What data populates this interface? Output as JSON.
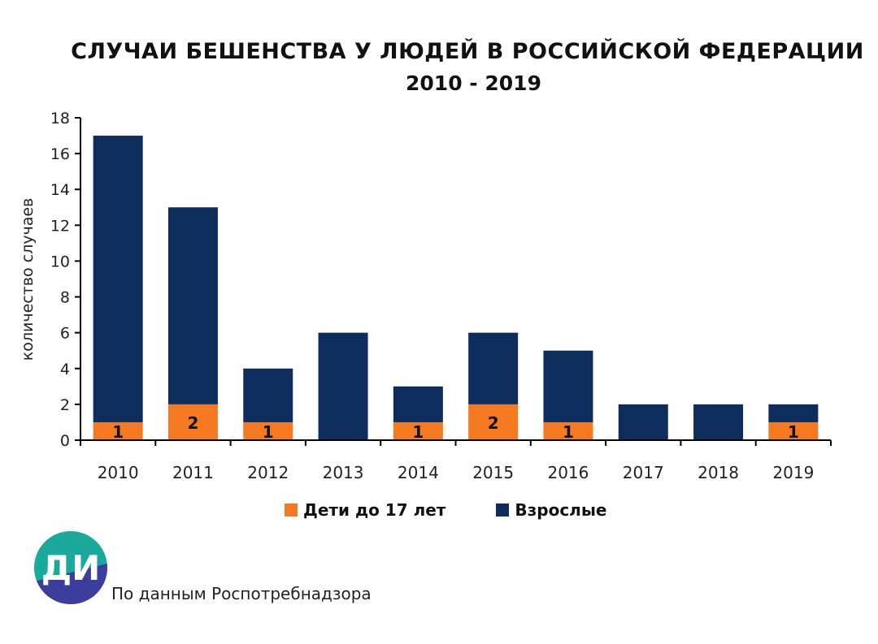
{
  "header": {
    "title": "СЛУЧАИ БЕШЕНСТВА У ЛЮДЕЙ В РОССИЙСКОЙ ФЕДЕРАЦИИ",
    "subtitle": "2010 - 2019"
  },
  "chart_data": {
    "type": "bar",
    "stacked": true,
    "categories": [
      "2010",
      "2011",
      "2012",
      "2013",
      "2014",
      "2015",
      "2016",
      "2017",
      "2018",
      "2019"
    ],
    "series": [
      {
        "name": "Дети до 17 лет",
        "values": [
          1,
          2,
          1,
          0,
          1,
          2,
          1,
          0,
          0,
          1
        ],
        "color": "#f47920"
      },
      {
        "name": "Взрослые",
        "values": [
          16,
          11,
          3,
          6,
          2,
          4,
          4,
          2,
          2,
          1
        ],
        "color": "#0d2d5c"
      }
    ],
    "data_labels": [
      "1",
      "2",
      "1",
      "",
      "1",
      "2",
      "1",
      "",
      "",
      "1"
    ],
    "ylabel": "количество случаев",
    "xlabel": "",
    "ylim": [
      0,
      18
    ],
    "yticks": [
      "0",
      "2",
      "4",
      "6",
      "8",
      "10",
      "12",
      "14",
      "16",
      "18"
    ],
    "grid": false,
    "legend_position": "bottom"
  },
  "logo": {
    "text": "ДИ",
    "colors": [
      "#1aa99a",
      "#3d3d9e"
    ]
  },
  "source": {
    "text": "По данным Роспотребнадзора"
  }
}
